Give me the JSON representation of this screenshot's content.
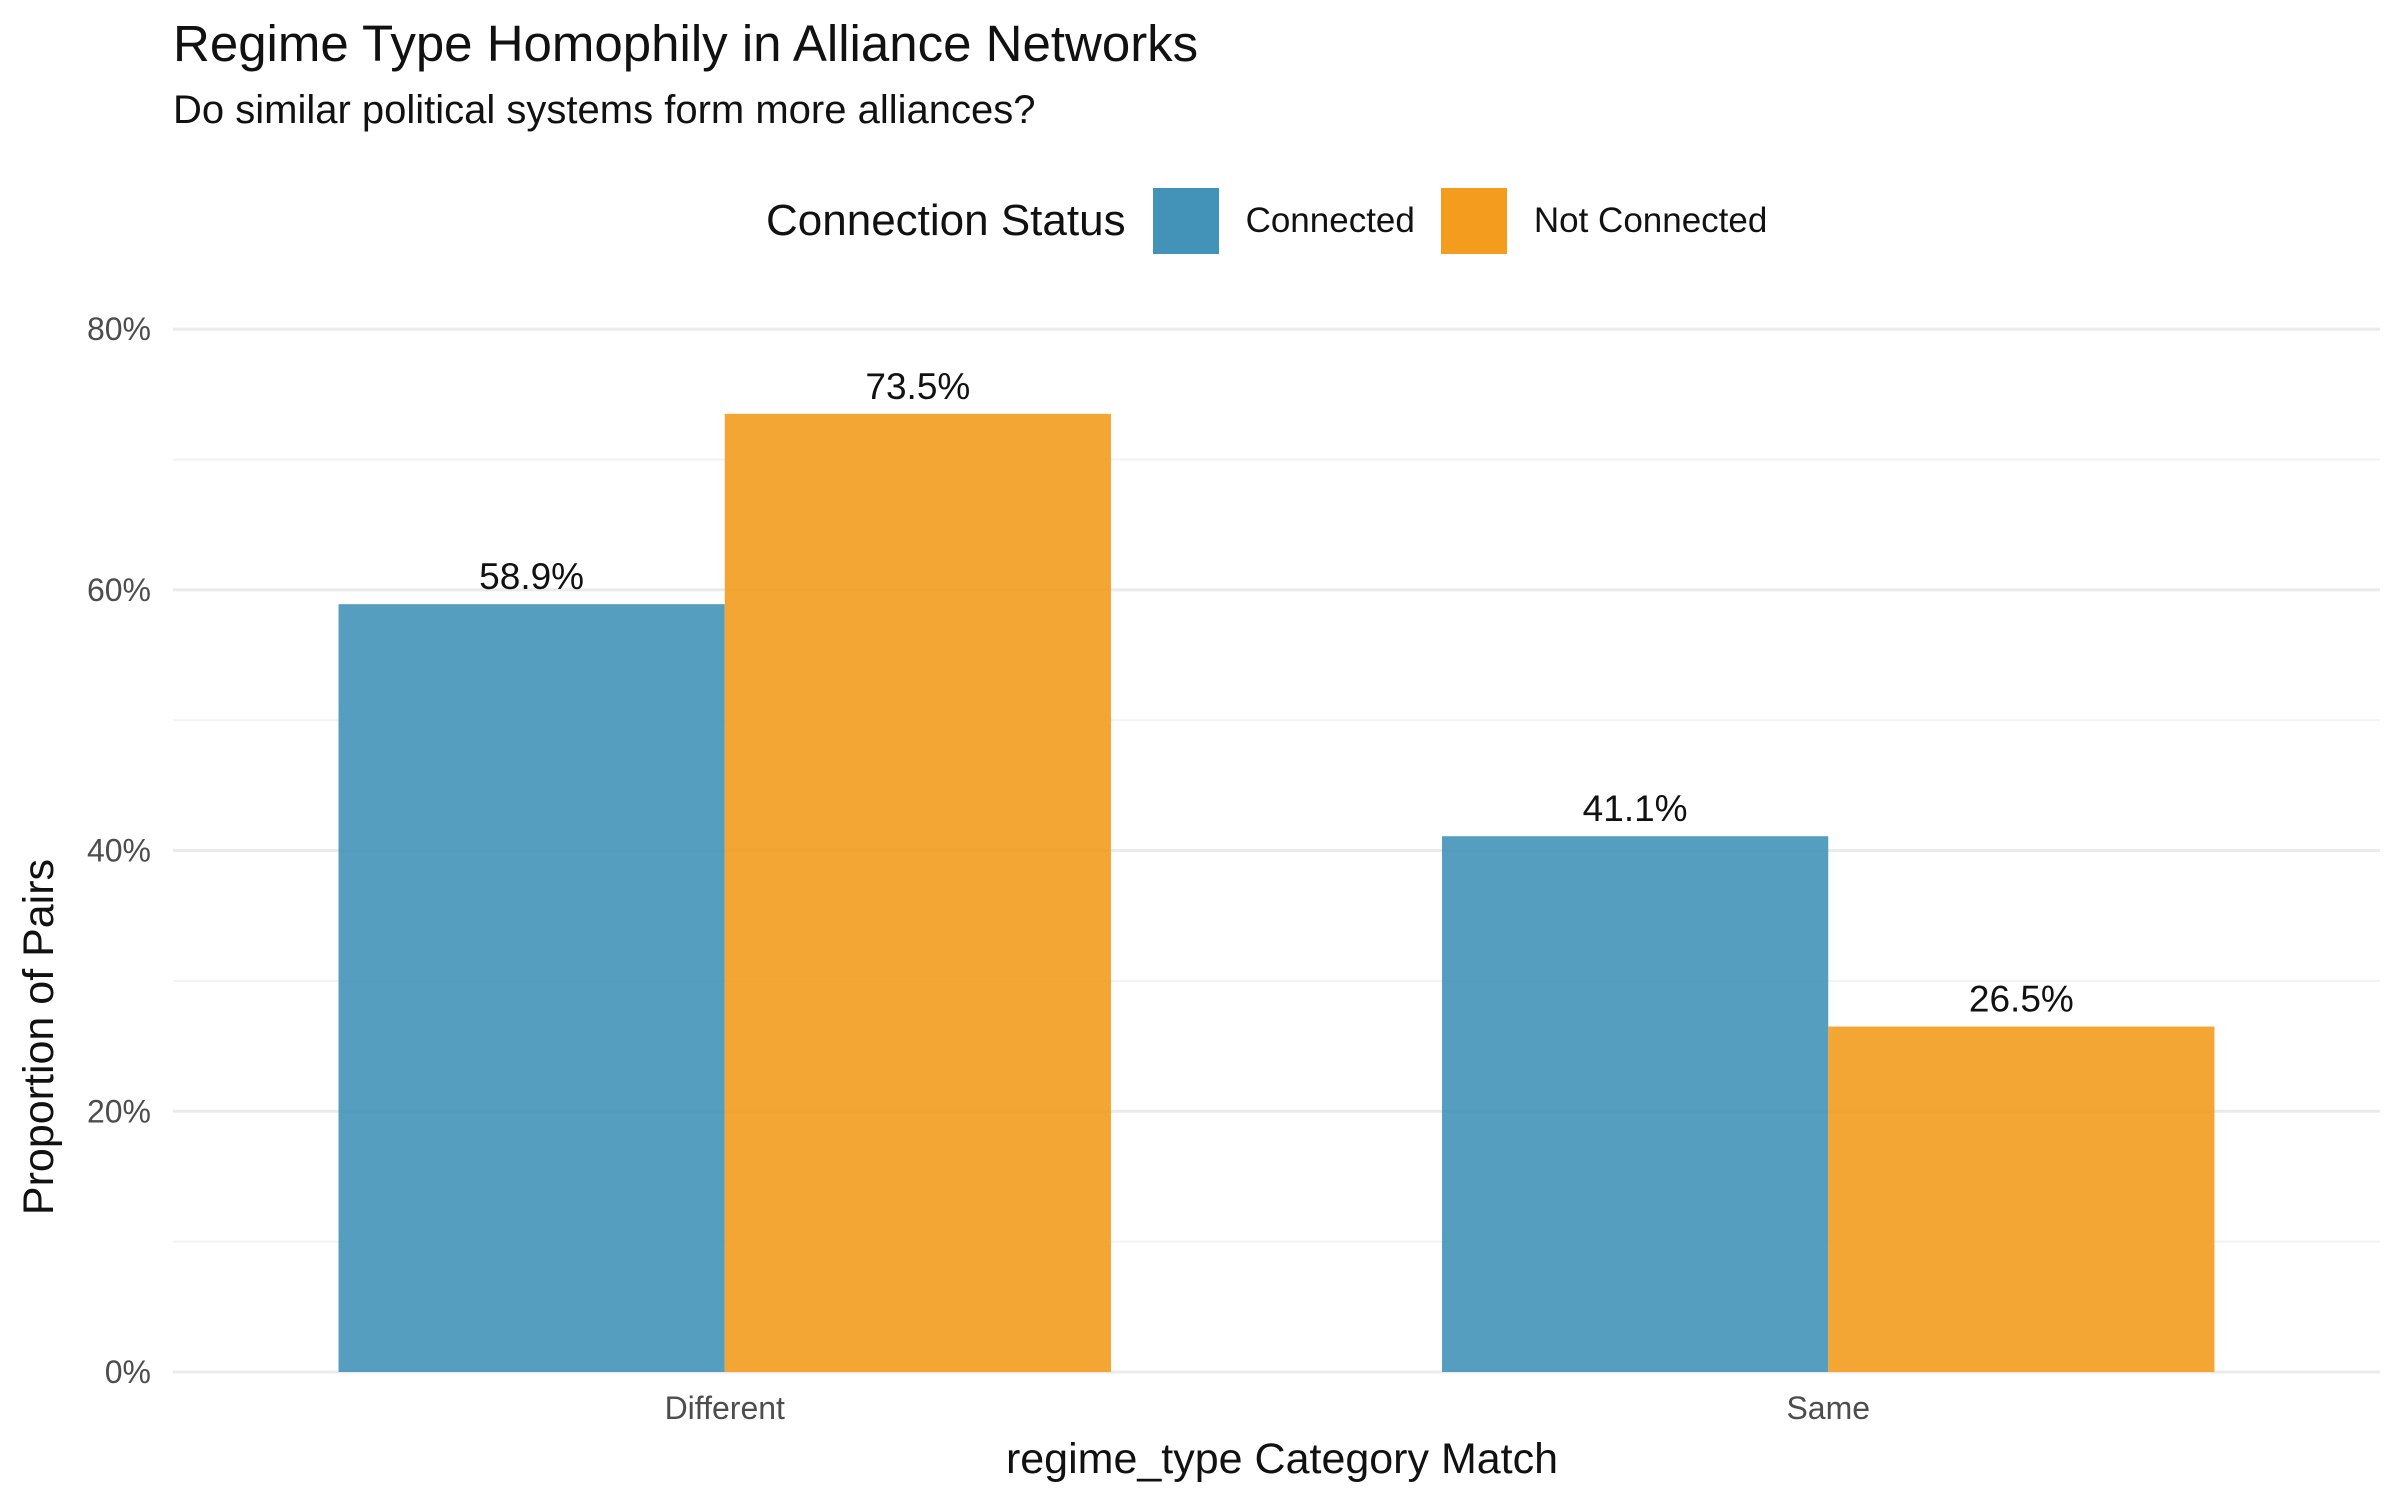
{
  "chart_data": {
    "type": "bar",
    "title": "Regime Type Homophily in Alliance Networks",
    "subtitle": "Do similar political systems form more alliances?",
    "xlabel": "regime_type Category Match",
    "ylabel": "Proportion of Pairs",
    "categories": [
      "Different",
      "Same"
    ],
    "series": [
      {
        "name": "Connected",
        "color": "#4393B8",
        "values": [
          58.9,
          41.1
        ],
        "labels": [
          "58.9%",
          "41.1%"
        ]
      },
      {
        "name": "Not Connected",
        "color": "#F39C1E",
        "values": [
          73.5,
          26.5
        ],
        "labels": [
          "73.5%",
          "26.5%"
        ]
      }
    ],
    "ylim": [
      0,
      80
    ],
    "yticks": [
      0,
      20,
      40,
      60,
      80
    ],
    "ytick_labels": [
      "0%",
      "20%",
      "40%",
      "60%",
      "80%"
    ],
    "grid": true,
    "legend": {
      "title": "Connection Status",
      "position": "top"
    }
  }
}
